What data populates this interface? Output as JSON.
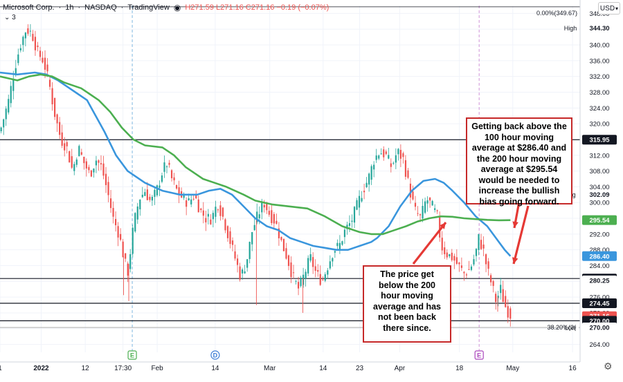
{
  "header": {
    "symbol": "Microsoft Corp.",
    "interval": "1h",
    "exchange": "NASDAQ",
    "source": "TradingView",
    "ohlc": "H271.59 L271.16 C271.16 −0.19 (−0.07%)",
    "ma_count": "3"
  },
  "currency_button": "USD",
  "fib_labels": {
    "top": "0.00%(349.67)",
    "bottom": "38.20%(2("
  },
  "annotations": {
    "right": "Getting back above the 100 hour moving average at $286.40 and the 200 hour moving average at $295.54 would be needed to increase the bullish bias going forward.",
    "bottom": "The price get below the 200 hour moving average and has not been back there since."
  },
  "chart_data": {
    "type": "line",
    "subtype": "candlestick-with-moving-averages",
    "ylim": [
      262,
      350
    ],
    "y_ticks": [
      348,
      344,
      340,
      336,
      332,
      328,
      324,
      320,
      316,
      312,
      308,
      304,
      300,
      296,
      292,
      288,
      284,
      280,
      276,
      272,
      268,
      264
    ],
    "x_tick_labels": [
      "1",
      "2022",
      "12",
      "17:30",
      "Feb",
      "14",
      "Mar",
      "14",
      "23",
      "Apr",
      "18",
      "May",
      "16"
    ],
    "x_range": [
      0,
      100
    ],
    "x_ticks": [
      0,
      7.1,
      14.7,
      21.2,
      27.1,
      37.1,
      46.5,
      55.7,
      62.0,
      68.9,
      79.2,
      88.4,
      98.7
    ],
    "price_path": [
      [
        0,
        318
      ],
      [
        1.5,
        326
      ],
      [
        2.5,
        334
      ],
      [
        3.5,
        340
      ],
      [
        4.5,
        344
      ],
      [
        5.5,
        343
      ],
      [
        6.5,
        338
      ],
      [
        7.5,
        336
      ],
      [
        8.5,
        330
      ],
      [
        9.5,
        322
      ],
      [
        10.5,
        316
      ],
      [
        11.5,
        314
      ],
      [
        12.5,
        308
      ],
      [
        13.5,
        314
      ],
      [
        14.5,
        310
      ],
      [
        15.5,
        307
      ],
      [
        16.5,
        311
      ],
      [
        17.5,
        309
      ],
      [
        18.5,
        303
      ],
      [
        19.5,
        296
      ],
      [
        20.5,
        292
      ],
      [
        21.5,
        285
      ],
      [
        22,
        282
      ],
      [
        23,
        294
      ],
      [
        24,
        301
      ],
      [
        25,
        303
      ],
      [
        26,
        300
      ],
      [
        27,
        303
      ],
      [
        28,
        308
      ],
      [
        28.8,
        310
      ],
      [
        29.6,
        306
      ],
      [
        30.5,
        303
      ],
      [
        31.5,
        301
      ],
      [
        32.5,
        300
      ],
      [
        33.5,
        302
      ],
      [
        34.5,
        298
      ],
      [
        35.5,
        296
      ],
      [
        36.5,
        296
      ],
      [
        37.5,
        300
      ],
      [
        38.5,
        296
      ],
      [
        39.5,
        291
      ],
      [
        40.5,
        286
      ],
      [
        41.5,
        281
      ],
      [
        42.5,
        285
      ],
      [
        43.5,
        293
      ],
      [
        44.5,
        297
      ],
      [
        45.5,
        300
      ],
      [
        46.5,
        297
      ],
      [
        47.5,
        295
      ],
      [
        48.5,
        290
      ],
      [
        49.5,
        286
      ],
      [
        50.5,
        281
      ],
      [
        51.5,
        278
      ],
      [
        52.5,
        282
      ],
      [
        53.5,
        286
      ],
      [
        54.5,
        282
      ],
      [
        55.5,
        280
      ],
      [
        56.5,
        284
      ],
      [
        57.5,
        288
      ],
      [
        58.5,
        289
      ],
      [
        59.5,
        293
      ],
      [
        60.5,
        295
      ],
      [
        61.5,
        299
      ],
      [
        62.5,
        303
      ],
      [
        63.5,
        306
      ],
      [
        64.5,
        311
      ],
      [
        65.5,
        313
      ],
      [
        66.5,
        312
      ],
      [
        67.5,
        309
      ],
      [
        68.5,
        313
      ],
      [
        69.5,
        311
      ],
      [
        70.5,
        304
      ],
      [
        71.5,
        298
      ],
      [
        72.5,
        296
      ],
      [
        73.5,
        301
      ],
      [
        74.5,
        299
      ],
      [
        75.5,
        296
      ],
      [
        76,
        289
      ],
      [
        77,
        287
      ],
      [
        78,
        286
      ],
      [
        79,
        284
      ],
      [
        80,
        282
      ],
      [
        81,
        283
      ],
      [
        82,
        287
      ],
      [
        82.5,
        291
      ],
      [
        83.3,
        288
      ],
      [
        84,
        283
      ],
      [
        84.8,
        279
      ],
      [
        85.5,
        275
      ],
      [
        86.3,
        278
      ],
      [
        87,
        274
      ],
      [
        87.7,
        272
      ],
      [
        88.2,
        271.16
      ]
    ],
    "series": [
      {
        "name": "100 hour MA",
        "color": "#3a96dd",
        "points": [
          [
            0,
            333
          ],
          [
            3,
            332.5
          ],
          [
            6,
            333
          ],
          [
            8,
            332.5
          ],
          [
            10,
            331
          ],
          [
            13,
            328
          ],
          [
            15,
            326
          ],
          [
            18,
            318
          ],
          [
            20,
            312
          ],
          [
            22,
            308
          ],
          [
            25,
            305
          ],
          [
            28,
            303
          ],
          [
            31,
            302
          ],
          [
            34,
            302
          ],
          [
            36,
            303
          ],
          [
            38,
            303.5
          ],
          [
            40,
            302
          ],
          [
            42,
            299
          ],
          [
            44,
            296
          ],
          [
            46,
            294
          ],
          [
            48,
            293
          ],
          [
            50,
            291
          ],
          [
            52,
            290
          ],
          [
            54,
            289
          ],
          [
            56,
            288.5
          ],
          [
            58,
            288
          ],
          [
            60,
            288
          ],
          [
            62,
            289
          ],
          [
            64,
            290
          ],
          [
            65,
            291
          ],
          [
            67,
            294
          ],
          [
            69,
            299
          ],
          [
            71,
            303
          ],
          [
            73,
            305.5
          ],
          [
            75,
            306
          ],
          [
            76.5,
            305
          ],
          [
            78,
            303
          ],
          [
            80,
            300
          ],
          [
            82,
            296.5
          ],
          [
            84,
            294
          ],
          [
            85.5,
            291
          ],
          [
            87,
            288
          ],
          [
            88,
            286.4
          ]
        ]
      },
      {
        "name": "200 hour MA",
        "color": "#4caf50",
        "points": [
          [
            0,
            332
          ],
          [
            3,
            331
          ],
          [
            5,
            332
          ],
          [
            7,
            332.5
          ],
          [
            9,
            332
          ],
          [
            11,
            330.5
          ],
          [
            14,
            329
          ],
          [
            17,
            326
          ],
          [
            19,
            323
          ],
          [
            21,
            319
          ],
          [
            23,
            316
          ],
          [
            25,
            314.5
          ],
          [
            28,
            314
          ],
          [
            30,
            312
          ],
          [
            32,
            309
          ],
          [
            35,
            306
          ],
          [
            37,
            305
          ],
          [
            39,
            304
          ],
          [
            42,
            302
          ],
          [
            44,
            300.5
          ],
          [
            47,
            299.5
          ],
          [
            50,
            299
          ],
          [
            53,
            298.5
          ],
          [
            56,
            296.5
          ],
          [
            59,
            294
          ],
          [
            62,
            292.5
          ],
          [
            64,
            292
          ],
          [
            66,
            292
          ],
          [
            68,
            293
          ],
          [
            70,
            294
          ],
          [
            72,
            295.2
          ],
          [
            74,
            296
          ],
          [
            76,
            296.5
          ],
          [
            78,
            296.4
          ],
          [
            80,
            296
          ],
          [
            82,
            295.8
          ],
          [
            84,
            295.6
          ],
          [
            86,
            295.5
          ],
          [
            88,
            295.54
          ]
        ]
      }
    ],
    "horizontal_levels": [
      349.67,
      315.95,
      280.72,
      274.45,
      270.0
    ],
    "price_badges": [
      {
        "label": "315.95",
        "value": 315.95,
        "bg": "#131722",
        "fg": "#ffffff"
      },
      {
        "label": "302.09",
        "value": 302.09,
        "bg": "#ffffff",
        "fg": "#131722",
        "tag": "Avg"
      },
      {
        "label": "295.54",
        "value": 295.54,
        "bg": "#4caf50",
        "fg": "#ffffff"
      },
      {
        "label": "286.40",
        "value": 286.4,
        "bg": "#3a96dd",
        "fg": "#ffffff"
      },
      {
        "label": "280.72",
        "value": 280.72,
        "bg": "#131722",
        "fg": "#ffffff"
      },
      {
        "label": "280.25",
        "value": 280.25,
        "bg": "#ffffff",
        "fg": "#131722"
      },
      {
        "label": "274.45",
        "value": 274.45,
        "bg": "#131722",
        "fg": "#ffffff"
      },
      {
        "label": "271.16",
        "value": 271.16,
        "bg": "#ef5350",
        "fg": "#ffffff"
      },
      {
        "label": "270.00",
        "value": 270.0,
        "bg": "#131722",
        "fg": "#ffffff"
      },
      {
        "label": "344.30",
        "value": 344.3,
        "bg": "#ffffff",
        "fg": "#131722",
        "tag": "High"
      },
      {
        "label": "270.00",
        "value": 268.3,
        "bg": "#ffffff",
        "fg": "#131722",
        "tag": "Low"
      }
    ],
    "event_markers": [
      {
        "label": "E",
        "x": 22.8,
        "color": "#4caf50"
      },
      {
        "label": "D",
        "x": 37.1,
        "color": "#3a7bd5"
      },
      {
        "label": "E",
        "x": 82.6,
        "color": "#ab47bc"
      }
    ],
    "vertical_dashed_at": [
      22.8,
      82.6
    ]
  }
}
